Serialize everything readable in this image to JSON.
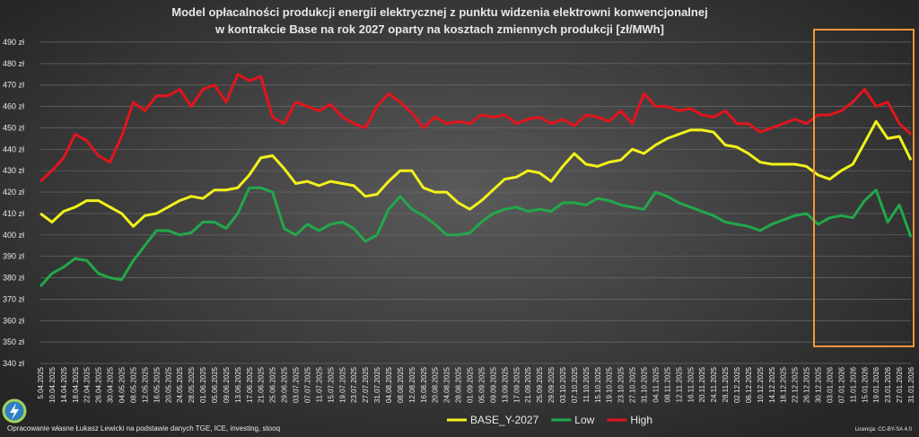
{
  "chart_data": {
    "type": "line",
    "title": [
      "Model opłacalności produkcji energii elektrycznej z punktu widzenia elektrowni konwencjonalnej",
      "w kontrakcie Base na rok 2027 oparty na kosztach zmiennych produkcji [zł/MWh]"
    ],
    "source": "Opracowanie własne Łukasz Lewicki na podstawie danych TGE, ICE, investing, stooq",
    "license": "Licencja: CC-BY-SA 4.0",
    "categories": [
      "5.04.2025",
      "10.04.2025",
      "14.04.2025",
      "18.04.2025",
      "22.04.2025",
      "26.04.2025",
      "30.04.2025",
      "04.05.2025",
      "08.05.2025",
      "12.05.2025",
      "16.05.2025",
      "20.05.2025",
      "24.05.2025",
      "28.05.2025",
      "01.06.2025",
      "05.06.2025",
      "09.06.2025",
      "13.06.2025",
      "17.06.2025",
      "21.06.2025",
      "25.06.2025",
      "29.06.2025",
      "03.07.2025",
      "07.07.2025",
      "11.07.2025",
      "15.07.2025",
      "19.07.2025",
      "23.07.2025",
      "27.07.2025",
      "31.07.2025",
      "04.08.2025",
      "08.08.2025",
      "12.08.2025",
      "16.08.2025",
      "20.08.2025",
      "24.08.2025",
      "28.08.2025",
      "01.09.2025",
      "05.09.2025",
      "09.09.2025",
      "13.09.2025",
      "17.09.2025",
      "21.09.2025",
      "25.09.2025",
      "29.09.2025",
      "03.10.2025",
      "07.10.2025",
      "11.10.2025",
      "15.10.2025",
      "19.10.2025",
      "23.10.2025",
      "27.10.2025",
      "31.10.2025",
      "04.11.2025",
      "08.11.2025",
      "12.11.2025",
      "16.11.2025",
      "20.11.2025",
      "24.11.2025",
      "28.11.2025",
      "02.12.2025",
      "06.12.2025",
      "10.12.2025",
      "14.12.2025",
      "18.12.2025",
      "22.12.2025",
      "26.12.2025",
      "30.12.2025",
      "03.01.2026",
      "07.01.2026",
      "11.01.2026",
      "15.01.2026",
      "19.01.2026",
      "23.01.2026",
      "27.01.2026",
      "31.01.2026"
    ],
    "series": [
      {
        "name": "BASE_Y-2027",
        "color": "#f2f21a",
        "values": [
          410,
          406,
          411,
          413,
          416,
          416,
          413,
          410,
          404,
          409,
          410,
          413,
          416,
          418,
          417,
          421,
          421,
          422,
          428,
          436,
          437,
          431,
          424,
          425,
          423,
          425,
          424,
          423,
          418,
          419,
          425,
          430,
          430,
          422,
          420,
          420,
          415,
          412,
          416,
          421,
          426,
          427,
          430,
          429,
          425,
          432,
          438,
          433,
          432,
          434,
          435,
          440,
          438,
          442,
          445,
          447,
          449,
          449,
          448,
          442,
          441,
          438,
          434,
          433,
          433,
          433,
          432,
          428,
          426,
          430,
          433,
          443,
          453,
          445,
          446,
          435
        ]
      },
      {
        "name": "Low",
        "color": "#22a84a",
        "values": [
          376,
          382,
          385,
          389,
          388,
          382,
          380,
          379,
          388,
          395,
          402,
          402,
          400,
          401,
          406,
          406,
          403,
          410,
          422,
          422,
          420,
          403,
          400,
          405,
          402,
          405,
          406,
          403,
          397,
          400,
          412,
          418,
          412,
          409,
          405,
          400,
          400,
          401,
          406,
          410,
          412,
          413,
          411,
          412,
          411,
          415,
          415,
          414,
          417,
          416,
          414,
          413,
          412,
          420,
          418,
          415,
          413,
          411,
          409,
          406,
          405,
          404,
          402,
          405,
          407,
          409,
          410,
          405,
          408,
          409,
          408,
          416,
          421,
          406,
          414,
          399
        ]
      },
      {
        "name": "High",
        "color": "#e3141c",
        "values": [
          425,
          430,
          436,
          447,
          444,
          437,
          434,
          446,
          462,
          458,
          465,
          465,
          468,
          460,
          468,
          470,
          462,
          475,
          472,
          474,
          455,
          452,
          462,
          460,
          458,
          461,
          455,
          452,
          450,
          460,
          466,
          462,
          457,
          450,
          455,
          452,
          453,
          452,
          456,
          455,
          456,
          452,
          454,
          455,
          452,
          454,
          451,
          456,
          455,
          453,
          458,
          452,
          466,
          460,
          460,
          458,
          459,
          456,
          455,
          458,
          452,
          452,
          448,
          450,
          452,
          454,
          452,
          456,
          456,
          458,
          462,
          468,
          460,
          462,
          452,
          447
        ]
      }
    ],
    "ylim": [
      340,
      490
    ],
    "yticks": [
      {
        "value": 340,
        "label": "340 zł"
      },
      {
        "value": 350,
        "label": "350 zł"
      },
      {
        "value": 360,
        "label": "360 zł"
      },
      {
        "value": 370,
        "label": "370 zł"
      },
      {
        "value": 380,
        "label": "380 zł"
      },
      {
        "value": 390,
        "label": "390 zł"
      },
      {
        "value": 400,
        "label": "400 zł"
      },
      {
        "value": 410,
        "label": "410 zł"
      },
      {
        "value": 420,
        "label": "420 zł"
      },
      {
        "value": 430,
        "label": "430 zł"
      },
      {
        "value": 440,
        "label": "440 zł"
      },
      {
        "value": 450,
        "label": "450 zł"
      },
      {
        "value": 460,
        "label": "460 zł"
      },
      {
        "value": 470,
        "label": "470 zł"
      },
      {
        "value": 480,
        "label": "480 zł"
      },
      {
        "value": 490,
        "label": "490 zł"
      }
    ],
    "grid": true,
    "legend": "bottom"
  }
}
